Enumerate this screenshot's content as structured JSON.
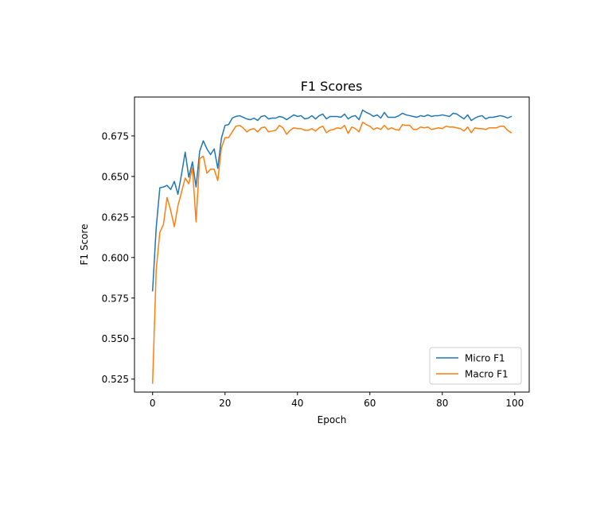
{
  "chart_data": {
    "type": "line",
    "title": "F1 Scores",
    "xlabel": "Epoch",
    "ylabel": "F1 Score",
    "xlim": [
      -5,
      104
    ],
    "ylim": [
      0.517,
      0.699
    ],
    "xticks": [
      0,
      20,
      40,
      60,
      80,
      100
    ],
    "yticks": [
      0.525,
      0.55,
      0.575,
      0.6,
      0.625,
      0.65,
      0.675
    ],
    "xtick_labels": [
      "0",
      "20",
      "40",
      "60",
      "80",
      "100"
    ],
    "ytick_labels": [
      "0.525",
      "0.550",
      "0.575",
      "0.600",
      "0.625",
      "0.650",
      "0.675"
    ],
    "grid": false,
    "legend_position": "lower right",
    "series": [
      {
        "name": "Micro F1",
        "color": "#1f77b4",
        "values": [
          0.5795,
          0.6185,
          0.643,
          0.6435,
          0.6445,
          0.642,
          0.647,
          0.639,
          0.6515,
          0.665,
          0.6495,
          0.659,
          0.6435,
          0.6655,
          0.672,
          0.667,
          0.6635,
          0.667,
          0.655,
          0.6735,
          0.6815,
          0.682,
          0.686,
          0.687,
          0.6875,
          0.6865,
          0.6855,
          0.685,
          0.686,
          0.6845,
          0.687,
          0.6875,
          0.6855,
          0.686,
          0.686,
          0.687,
          0.6865,
          0.685,
          0.6865,
          0.688,
          0.687,
          0.6875,
          0.6855,
          0.686,
          0.6875,
          0.6855,
          0.6875,
          0.6885,
          0.6855,
          0.687,
          0.687,
          0.687,
          0.6865,
          0.6885,
          0.6855,
          0.687,
          0.6875,
          0.685,
          0.691,
          0.6895,
          0.6885,
          0.687,
          0.688,
          0.686,
          0.6895,
          0.6865,
          0.6865,
          0.6865,
          0.6875,
          0.689,
          0.688,
          0.6875,
          0.687,
          0.6865,
          0.6875,
          0.687,
          0.688,
          0.687,
          0.6875,
          0.6875,
          0.688,
          0.6875,
          0.687,
          0.689,
          0.6885,
          0.687,
          0.6855,
          0.688,
          0.6845,
          0.686,
          0.687,
          0.6875,
          0.6855,
          0.6865,
          0.6865,
          0.687,
          0.6875,
          0.687,
          0.686,
          0.687
        ]
      },
      {
        "name": "Macro F1",
        "color": "#ff7f0e",
        "values": [
          0.5225,
          0.5925,
          0.6155,
          0.6205,
          0.637,
          0.629,
          0.619,
          0.632,
          0.6405,
          0.649,
          0.6455,
          0.6555,
          0.622,
          0.661,
          0.6625,
          0.652,
          0.6545,
          0.6545,
          0.6475,
          0.6675,
          0.674,
          0.674,
          0.6775,
          0.681,
          0.6815,
          0.68,
          0.6775,
          0.679,
          0.6795,
          0.6775,
          0.68,
          0.6805,
          0.6775,
          0.678,
          0.6785,
          0.6815,
          0.68,
          0.676,
          0.6785,
          0.68,
          0.6795,
          0.6795,
          0.6785,
          0.6785,
          0.6795,
          0.678,
          0.68,
          0.681,
          0.677,
          0.6785,
          0.679,
          0.68,
          0.6795,
          0.6815,
          0.6765,
          0.6805,
          0.6795,
          0.6775,
          0.6835,
          0.682,
          0.681,
          0.679,
          0.68,
          0.679,
          0.6815,
          0.679,
          0.68,
          0.679,
          0.6785,
          0.682,
          0.6815,
          0.6815,
          0.679,
          0.679,
          0.6805,
          0.68,
          0.6805,
          0.679,
          0.6795,
          0.68,
          0.6795,
          0.681,
          0.6805,
          0.6805,
          0.68,
          0.6795,
          0.678,
          0.6805,
          0.677,
          0.68,
          0.6795,
          0.6795,
          0.679,
          0.68,
          0.68,
          0.68,
          0.681,
          0.681,
          0.6785,
          0.677
        ]
      }
    ]
  }
}
